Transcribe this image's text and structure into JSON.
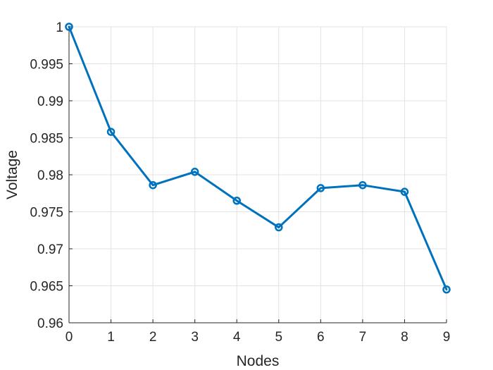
{
  "chart_data": {
    "type": "line",
    "xlabel": "Nodes",
    "ylabel": "Voltage",
    "xlim": [
      0,
      9
    ],
    "ylim": [
      0.96,
      1.0
    ],
    "x_ticks": [
      0,
      1,
      2,
      3,
      4,
      5,
      6,
      7,
      8,
      9
    ],
    "x_tick_labels": [
      "0",
      "1",
      "2",
      "3",
      "4",
      "5",
      "6",
      "7",
      "8",
      "9"
    ],
    "y_ticks": [
      0.96,
      0.965,
      0.97,
      0.975,
      0.98,
      0.985,
      0.99,
      0.995,
      1.0
    ],
    "y_tick_labels": [
      "0.96",
      "0.965",
      "0.97",
      "0.975",
      "0.98",
      "0.985",
      "0.99",
      "0.995",
      "1"
    ],
    "grid": true,
    "series": [
      {
        "color": "#0072BD",
        "marker": "circle",
        "x": [
          0,
          1,
          2,
          3,
          4,
          5,
          6,
          7,
          8,
          9
        ],
        "y": [
          1.0,
          0.9858,
          0.9786,
          0.9804,
          0.9765,
          0.9729,
          0.9782,
          0.9786,
          0.9777,
          0.9645
        ]
      }
    ]
  }
}
